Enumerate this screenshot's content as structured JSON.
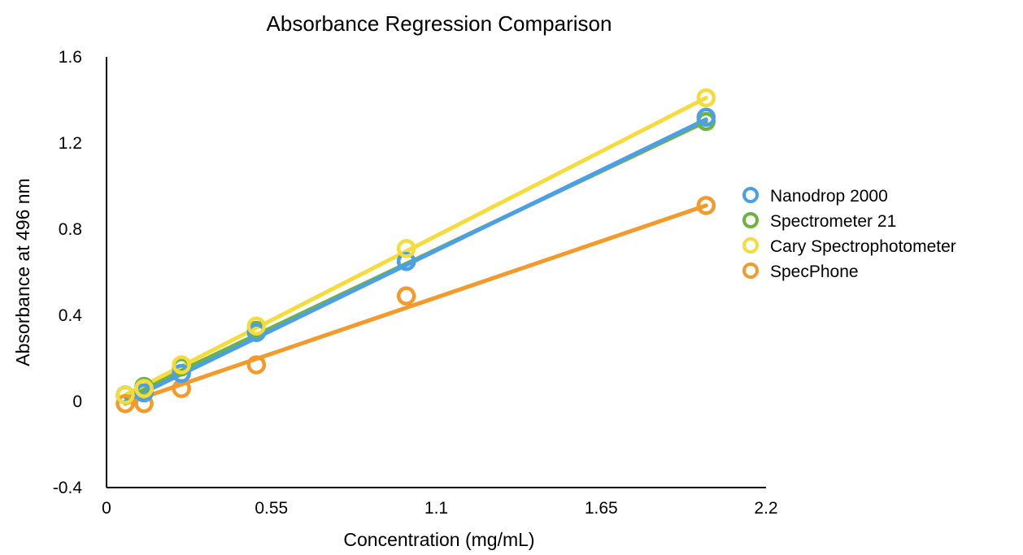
{
  "chart_data": {
    "type": "scatter",
    "title": "Absorbance Regression Comparison",
    "xlabel": "Concentration (mg/mL)",
    "ylabel": "Absorbance at 496 nm",
    "xlim": [
      0,
      2.2
    ],
    "ylim": [
      -0.4,
      1.6
    ],
    "xticks": [
      "0",
      "0.55",
      "1.1",
      "1.65",
      "2.2"
    ],
    "yticks": [
      "-0.4",
      "0",
      "0.4",
      "0.8",
      "1.2",
      "1.6"
    ],
    "grid": false,
    "legend_position": "right",
    "series": [
      {
        "name": "Nanodrop 2000",
        "color": "#4a9fe8",
        "x": [
          0.0625,
          0.125,
          0.25,
          0.5,
          1.0,
          2.0
        ],
        "y": [
          0.03,
          0.04,
          0.13,
          0.32,
          0.65,
          1.32
        ],
        "trendline": {
          "x": [
            0.0625,
            2.0
          ],
          "y": [
            0.0,
            1.31
          ]
        }
      },
      {
        "name": "Spectrometer 21",
        "color": "#6cb43f",
        "x": [
          0.0625,
          0.125,
          0.25,
          0.5,
          1.0,
          2.0
        ],
        "y": [
          0.03,
          0.07,
          0.16,
          0.33,
          0.65,
          1.3
        ],
        "trendline": {
          "x": [
            0.0625,
            2.0
          ],
          "y": [
            0.02,
            1.3
          ]
        }
      },
      {
        "name": "Cary Spectrophotometer",
        "color": "#f5dc3c",
        "x": [
          0.0625,
          0.125,
          0.25,
          0.5,
          1.0,
          2.0
        ],
        "y": [
          0.03,
          0.06,
          0.17,
          0.35,
          0.71,
          1.41
        ],
        "trendline": {
          "x": [
            0.0625,
            2.0
          ],
          "y": [
            0.03,
            1.41
          ]
        }
      },
      {
        "name": "SpecPhone",
        "color": "#f39a2b",
        "x": [
          0.0625,
          0.125,
          0.25,
          0.5,
          1.0,
          2.0
        ],
        "y": [
          -0.01,
          -0.01,
          0.06,
          0.17,
          0.49,
          0.91
        ],
        "trendline": {
          "x": [
            0.0625,
            2.0
          ],
          "y": [
            -0.01,
            0.91
          ]
        }
      }
    ]
  }
}
